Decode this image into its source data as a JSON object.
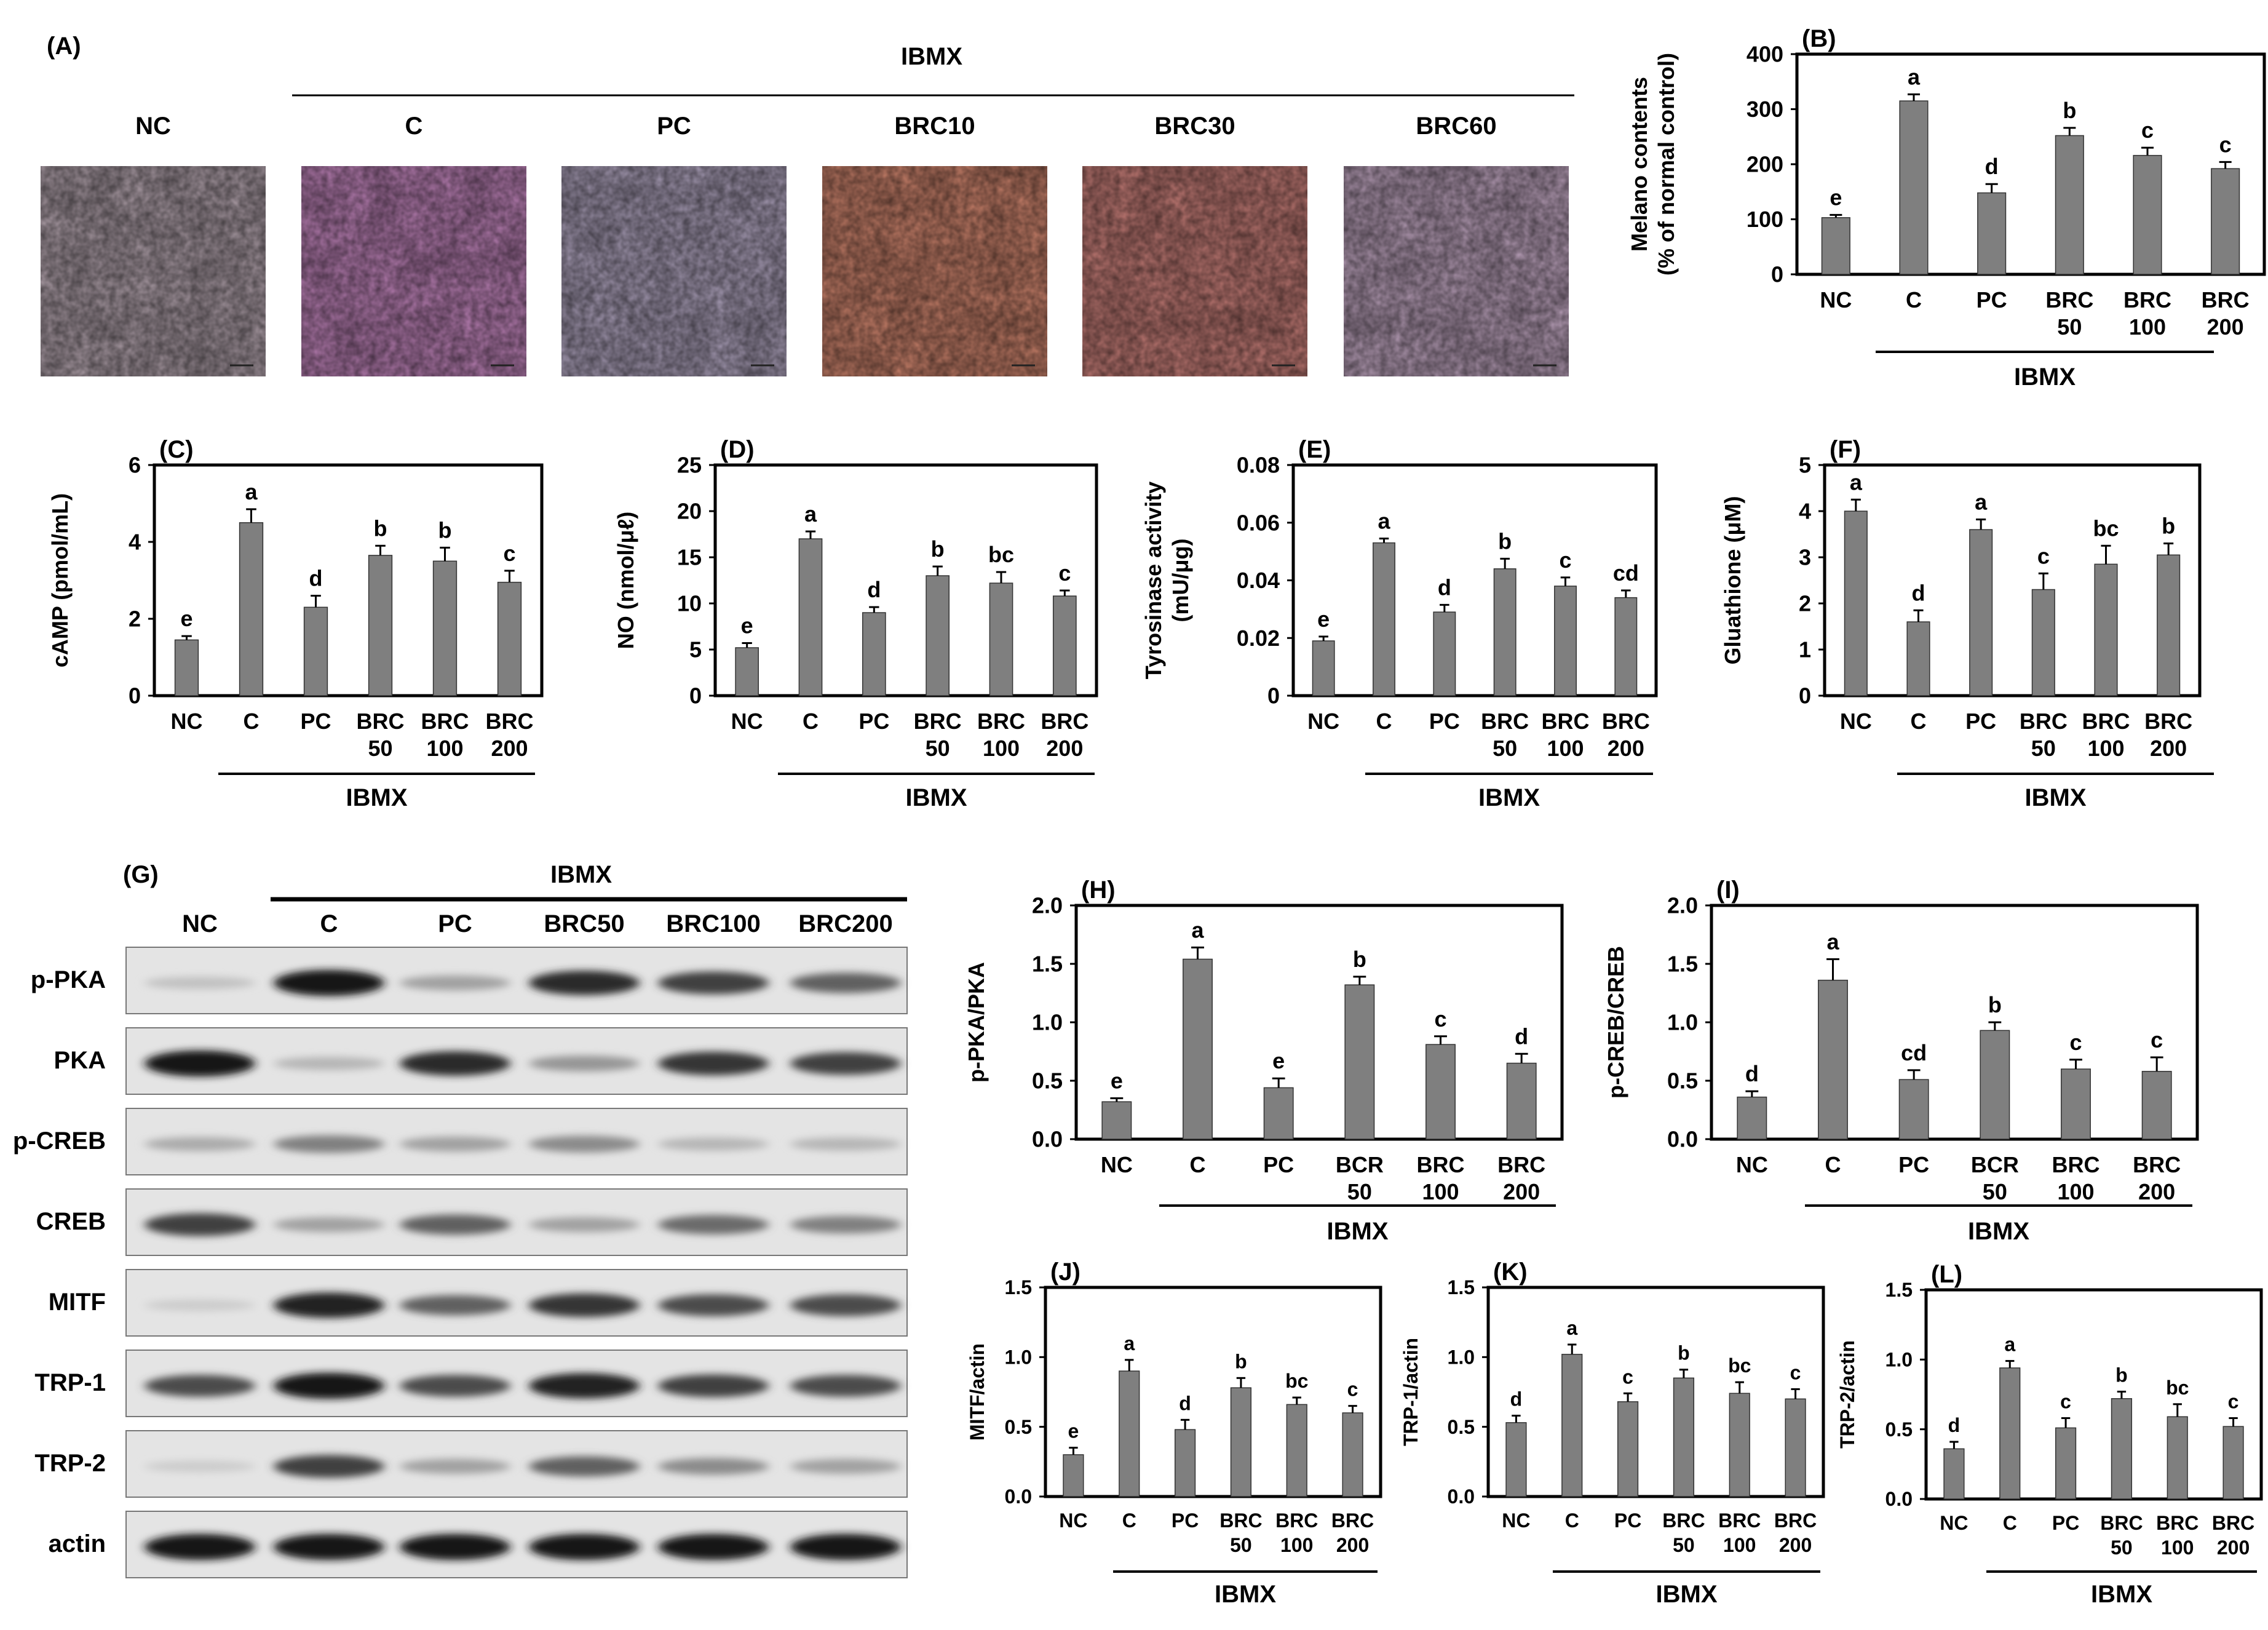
{
  "panel_A": {
    "label": "(A)",
    "group_label": "IBMX",
    "columns": [
      "NC",
      "C",
      "PC",
      "BRC10",
      "BRC30",
      "BRC60"
    ],
    "image_colors": [
      "#b8a8b2",
      "#c889c2",
      "#b5a9c4",
      "#d88a72",
      "#d3857f",
      "#c4a9c4"
    ],
    "image_speckle": [
      "#9a8c96",
      "#a86098",
      "#9a8eaa",
      "#b8664f",
      "#b35f60",
      "#a88ca8"
    ]
  },
  "panel_G": {
    "label": "(G)",
    "group_label": "IBMX",
    "columns": [
      "NC",
      "C",
      "PC",
      "BRC50",
      "BRC100",
      "BRC200"
    ],
    "rows": [
      "p-PKA",
      "PKA",
      "p-CREB",
      "CREB",
      "MITF",
      "TRP-1",
      "TRP-2",
      "actin"
    ],
    "band_intensity": [
      [
        0.15,
        0.95,
        0.3,
        0.85,
        0.75,
        0.6
      ],
      [
        0.95,
        0.2,
        0.85,
        0.35,
        0.8,
        0.75
      ],
      [
        0.25,
        0.45,
        0.3,
        0.4,
        0.2,
        0.2
      ],
      [
        0.75,
        0.3,
        0.6,
        0.3,
        0.55,
        0.45
      ],
      [
        0.1,
        0.9,
        0.6,
        0.8,
        0.7,
        0.7
      ],
      [
        0.7,
        0.95,
        0.7,
        0.9,
        0.75,
        0.7
      ],
      [
        0.1,
        0.75,
        0.3,
        0.6,
        0.4,
        0.3
      ],
      [
        0.95,
        0.95,
        0.95,
        0.95,
        0.95,
        0.95
      ]
    ]
  },
  "chart_data": [
    {
      "id": "B",
      "type": "bar",
      "label": "(B)",
      "ylabel": [
        "Melano contents",
        "(% of normal control)"
      ],
      "categories": [
        "NC",
        "C",
        "PC",
        "BRC\n50",
        "BRC\n100",
        "BRC\n200"
      ],
      "values": [
        103,
        315,
        148,
        252,
        216,
        192
      ],
      "errors": [
        5,
        12,
        16,
        14,
        14,
        12
      ],
      "letters": [
        "e",
        "a",
        "d",
        "b",
        "c",
        "c"
      ],
      "ylim": [
        0,
        400
      ],
      "yticks": [
        "0",
        "100",
        "200",
        "300",
        "400"
      ],
      "group_label": "IBMX",
      "bar_color": "#7f7f7f"
    },
    {
      "id": "C",
      "type": "bar",
      "label": "(C)",
      "ylabel": [
        "cAMP (pmol/mL)"
      ],
      "categories": [
        "NC",
        "C",
        "PC",
        "BRC\n50",
        "BRC\n100",
        "BRC\n200"
      ],
      "values": [
        1.45,
        4.5,
        2.3,
        3.65,
        3.5,
        2.95
      ],
      "errors": [
        0.1,
        0.35,
        0.3,
        0.25,
        0.35,
        0.3
      ],
      "letters": [
        "e",
        "a",
        "d",
        "b",
        "b",
        "c"
      ],
      "ylim": [
        0,
        6
      ],
      "yticks": [
        "0",
        "2",
        "4",
        "6"
      ],
      "group_label": "IBMX",
      "bar_color": "#7f7f7f"
    },
    {
      "id": "D",
      "type": "bar",
      "label": "(D)",
      "ylabel": [
        "NO (nmol/μℓ)"
      ],
      "categories": [
        "NC",
        "C",
        "PC",
        "BRC\n50",
        "BRC\n100",
        "BRC\n200"
      ],
      "values": [
        5.2,
        17.0,
        9.0,
        13.0,
        12.2,
        10.8
      ],
      "errors": [
        0.5,
        0.8,
        0.6,
        1.0,
        1.2,
        0.6
      ],
      "letters": [
        "e",
        "a",
        "d",
        "b",
        "bc",
        "c"
      ],
      "ylim": [
        0,
        25
      ],
      "yticks": [
        "0",
        "5",
        "10",
        "15",
        "20",
        "25"
      ],
      "group_label": "IBMX",
      "bar_color": "#7f7f7f"
    },
    {
      "id": "E",
      "type": "bar",
      "label": "(E)",
      "ylabel": [
        "Tyrosinase activity",
        "(mU/μg)"
      ],
      "categories": [
        "NC",
        "C",
        "PC",
        "BRC\n50",
        "BRC\n100",
        "BRC\n200"
      ],
      "values": [
        0.019,
        0.053,
        0.029,
        0.044,
        0.038,
        0.034
      ],
      "errors": [
        0.0015,
        0.0015,
        0.0025,
        0.0035,
        0.003,
        0.0025
      ],
      "letters": [
        "e",
        "a",
        "d",
        "b",
        "c",
        "cd"
      ],
      "ylim": [
        0,
        0.08
      ],
      "yticks": [
        "0",
        "0.02",
        "0.04",
        "0.06",
        "0.08"
      ],
      "group_label": "IBMX",
      "bar_color": "#7f7f7f"
    },
    {
      "id": "F",
      "type": "bar",
      "label": "(F)",
      "ylabel": [
        "Gluathione (μM)"
      ],
      "categories": [
        "NC",
        "C",
        "PC",
        "BRC\n50",
        "BRC\n100",
        "BRC\n200"
      ],
      "values": [
        4.0,
        1.6,
        3.6,
        2.3,
        2.85,
        3.05
      ],
      "errors": [
        0.25,
        0.25,
        0.22,
        0.35,
        0.4,
        0.25
      ],
      "letters": [
        "a",
        "d",
        "a",
        "c",
        "bc",
        "b"
      ],
      "ylim": [
        0,
        5
      ],
      "yticks": [
        "0",
        "1",
        "2",
        "3",
        "4",
        "5"
      ],
      "group_label": "IBMX",
      "bar_color": "#7f7f7f"
    },
    {
      "id": "H",
      "type": "bar",
      "label": "(H)",
      "ylabel": [
        "p-PKA/PKA"
      ],
      "categories": [
        "NC",
        "C",
        "PC",
        "BCR\n50",
        "BRC\n100",
        "BRC\n200"
      ],
      "values": [
        0.32,
        1.54,
        0.44,
        1.32,
        0.81,
        0.65
      ],
      "errors": [
        0.03,
        0.1,
        0.08,
        0.07,
        0.07,
        0.08
      ],
      "letters": [
        "e",
        "a",
        "e",
        "b",
        "c",
        "d"
      ],
      "ylim": [
        0,
        2
      ],
      "yticks": [
        "0.0",
        "0.5",
        "1.0",
        "1.5",
        "2.0"
      ],
      "group_label": "IBMX",
      "bar_color": "#7f7f7f"
    },
    {
      "id": "I",
      "type": "bar",
      "label": "(I)",
      "ylabel": [
        "p-CREB/CREB"
      ],
      "categories": [
        "NC",
        "C",
        "PC",
        "BCR\n50",
        "BRC\n100",
        "BRC\n200"
      ],
      "values": [
        0.36,
        1.36,
        0.51,
        0.93,
        0.6,
        0.58
      ],
      "errors": [
        0.05,
        0.18,
        0.08,
        0.07,
        0.08,
        0.12
      ],
      "letters": [
        "d",
        "a",
        "cd",
        "b",
        "c",
        "c"
      ],
      "ylim": [
        0,
        2
      ],
      "yticks": [
        "0.0",
        "0.5",
        "1.0",
        "1.5",
        "2.0"
      ],
      "group_label": "IBMX",
      "bar_color": "#7f7f7f"
    },
    {
      "id": "J",
      "type": "bar",
      "label": "(J)",
      "ylabel": [
        "MITF/actin"
      ],
      "categories": [
        "NC",
        "C",
        "PC",
        "BRC\n50",
        "BRC\n100",
        "BRC\n200"
      ],
      "values": [
        0.3,
        0.9,
        0.48,
        0.78,
        0.66,
        0.6
      ],
      "errors": [
        0.05,
        0.08,
        0.07,
        0.07,
        0.05,
        0.05
      ],
      "letters": [
        "e",
        "a",
        "d",
        "b",
        "bc",
        "c"
      ],
      "ylim": [
        0,
        1.5
      ],
      "yticks": [
        "0.0",
        "0.5",
        "1.0",
        "1.5"
      ],
      "group_label": "IBMX",
      "bar_color": "#7f7f7f"
    },
    {
      "id": "K",
      "type": "bar",
      "label": "(K)",
      "ylabel": [
        "TRP-1/actin"
      ],
      "categories": [
        "NC",
        "C",
        "PC",
        "BRC\n50",
        "BRC\n100",
        "BRC\n200"
      ],
      "values": [
        0.53,
        1.02,
        0.68,
        0.85,
        0.74,
        0.7
      ],
      "errors": [
        0.05,
        0.07,
        0.06,
        0.06,
        0.08,
        0.07
      ],
      "letters": [
        "d",
        "a",
        "c",
        "b",
        "bc",
        "c"
      ],
      "ylim": [
        0,
        1.5
      ],
      "yticks": [
        "0.0",
        "0.5",
        "1.0",
        "1.5"
      ],
      "group_label": "IBMX",
      "bar_color": "#7f7f7f"
    },
    {
      "id": "L",
      "type": "bar",
      "label": "(L)",
      "ylabel": [
        "TRP-2/actin"
      ],
      "categories": [
        "NC",
        "C",
        "PC",
        "BRC\n50",
        "BRC\n100",
        "BRC\n200"
      ],
      "values": [
        0.36,
        0.94,
        0.51,
        0.72,
        0.59,
        0.52
      ],
      "errors": [
        0.05,
        0.05,
        0.07,
        0.05,
        0.09,
        0.06
      ],
      "letters": [
        "d",
        "a",
        "c",
        "b",
        "bc",
        "c"
      ],
      "ylim": [
        0,
        1.5
      ],
      "yticks": [
        "0.0",
        "0.5",
        "1.0",
        "1.5"
      ],
      "group_label": "IBMX",
      "bar_color": "#7f7f7f"
    }
  ]
}
